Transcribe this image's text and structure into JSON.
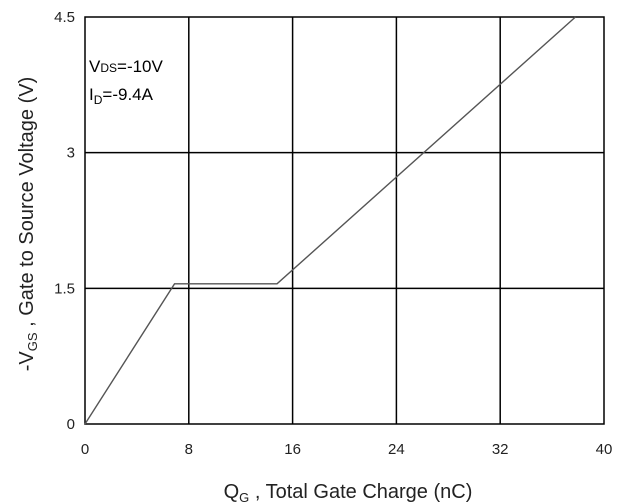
{
  "chart_data": {
    "type": "line",
    "xlabel": {
      "main": "Q",
      "sub": "G",
      "rest": " , Total Gate Charge (nC)"
    },
    "ylabel": {
      "pre": "-V",
      "sub": "GS",
      "rest": " , Gate to Source Voltage (V)"
    },
    "xlim": [
      0,
      40
    ],
    "ylim": [
      0,
      4.5
    ],
    "x_ticks": [
      0,
      8,
      16,
      24,
      32,
      40
    ],
    "y_ticks": [
      0,
      1.5,
      3,
      4.5
    ],
    "x_tick_labels": [
      "0",
      "8",
      "16",
      "24",
      "32",
      "40"
    ],
    "y_tick_labels": [
      "0",
      "1.5",
      "3",
      "4.5"
    ],
    "grid": true,
    "annotations": [
      {
        "main": "V",
        "sub": "DS",
        "rest": "=-10V"
      },
      {
        "main": "I",
        "sub": "D",
        "rest": "=-9.4A"
      }
    ],
    "series": [
      {
        "x": [
          0,
          6.9,
          14.8,
          37.8
        ],
        "y": [
          0,
          1.55,
          1.55,
          4.5
        ]
      }
    ]
  }
}
